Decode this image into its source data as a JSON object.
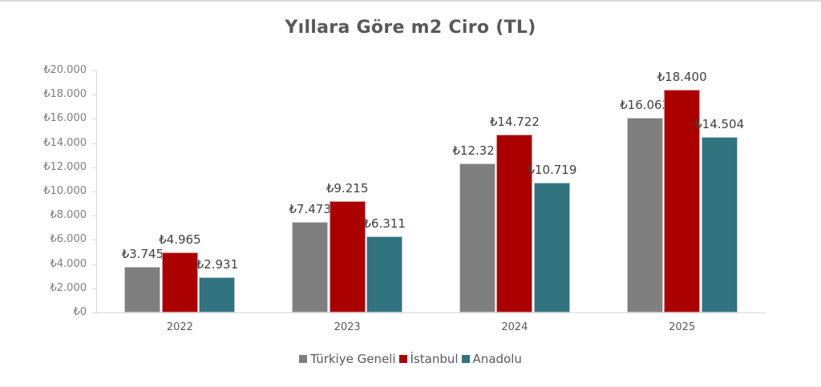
{
  "chart_data": {
    "type": "bar",
    "title": "Yıllara Göre m2 Ciro (TL)",
    "xlabel": "",
    "ylabel": "",
    "categories": [
      "2022",
      "2023",
      "2024",
      "2025"
    ],
    "series": [
      {
        "name": "Türkiye Geneli",
        "color": "#7f7f7f",
        "values": [
          3745,
          7473,
          12321,
          16062
        ],
        "labels": [
          "₺3.745",
          "₺7.473",
          "₺12.321",
          "₺16.062"
        ]
      },
      {
        "name": "İstanbul",
        "color": "#aa0000",
        "values": [
          4965,
          9215,
          14722,
          18400
        ],
        "labels": [
          "₺4.965",
          "₺9.215",
          "₺14.722",
          "₺18.400"
        ]
      },
      {
        "name": "Anadolu",
        "color": "#31737f",
        "values": [
          2931,
          6311,
          10719,
          14504
        ],
        "labels": [
          "₺2.931",
          "₺6.311",
          "₺10.719",
          "₺14.504"
        ]
      }
    ],
    "ylim": [
      0,
      20000
    ],
    "yticks": [
      0,
      2000,
      4000,
      6000,
      8000,
      10000,
      12000,
      14000,
      16000,
      18000,
      20000
    ],
    "ytick_labels": [
      "₺0",
      "₺2.000",
      "₺4.000",
      "₺6.000",
      "₺8.000",
      "₺10.000",
      "₺12.000",
      "₺14.000",
      "₺16.000",
      "₺18.000",
      "₺20.000"
    ],
    "grid": false,
    "legend_position": "bottom",
    "data_labels": true
  },
  "title": "Yıllara Göre m2 Ciro (TL)",
  "legend": [
    {
      "label": "Türkiye Geneli",
      "color": "#7f7f7f"
    },
    {
      "label": "İstanbul",
      "color": "#aa0000"
    },
    {
      "label": "Anadolu",
      "color": "#31737f"
    }
  ]
}
